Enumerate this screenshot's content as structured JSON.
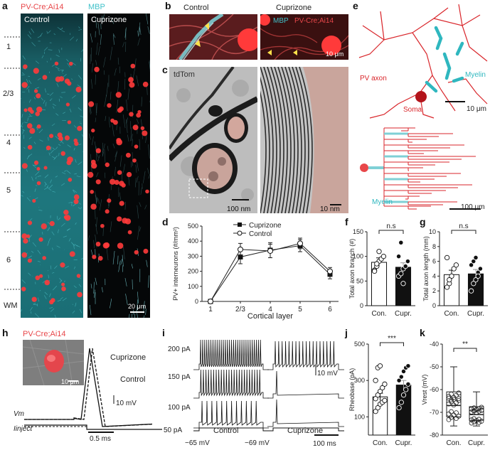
{
  "panels": {
    "a": {
      "letter": "a",
      "legend_red": "PV-Cre;Ai14",
      "legend_cyan": "MBP",
      "left_title": "Control",
      "right_title": "Cuprizone",
      "layers": [
        "1",
        "2/3",
        "4",
        "5",
        "6",
        "WM"
      ],
      "scale": "20 μm",
      "colors": {
        "red": "#e8474a",
        "cyan": "#3fc1c9",
        "bg": "#050708"
      }
    },
    "b": {
      "letter": "b",
      "left_title": "Control",
      "right_title": "Cuprizone",
      "mbp": "MBP",
      "pv": "PV-Cre;Ai14",
      "scale": "10 μm"
    },
    "c": {
      "letter": "c",
      "left_tag": "tdTom",
      "left_scale": "100 nm",
      "right_scale": "10 nm"
    },
    "d": {
      "letter": "d",
      "legend": [
        "Cuprizone",
        "Control"
      ],
      "ylabel": "PV+ interneurons (#/mm²)",
      "xlabel": "Cortical layer"
    },
    "e": {
      "letter": "e",
      "pv_axon": "PV axon",
      "myelin_top": "Myelin",
      "soma": "Soma",
      "scale_top": "10 μm",
      "myelin_bottom": "Myelin",
      "scale_bottom": "100 μm"
    },
    "f": {
      "letter": "f",
      "ylabel": "Total axon branch (#)",
      "sig": "n.s",
      "xticks": [
        "Con.",
        "Cupr."
      ]
    },
    "g": {
      "letter": "g",
      "ylabel": "Total axon length (mm)",
      "sig": "n.s",
      "xticks": [
        "Con.",
        "Cupr."
      ]
    },
    "h": {
      "letter": "h",
      "title": "PV-Cre;Ai14",
      "img_scale": "10 μm",
      "cuprizone": "Cuprizone",
      "control": "Control",
      "vm": "Vm",
      "inject": "Iinject",
      "volt_scale": "10 mV",
      "time_scale": "0.5 ms"
    },
    "i": {
      "letter": "i",
      "currents": [
        "200 pA",
        "150 pA",
        "100 pA",
        "50 pA"
      ],
      "control": "Control",
      "cuprizone": "Cuprizone",
      "vrest_control": "−65 mV",
      "vrest_cuprizone": "−69 mV",
      "volt_scale": "10 mV",
      "time_scale": "100 ms"
    },
    "j": {
      "letter": "j",
      "ylabel": "Rheobase (pA)",
      "sig": "***",
      "xticks": [
        "Con.",
        "Cupr."
      ]
    },
    "k": {
      "letter": "k",
      "ylabel": "Vrest (mV)",
      "sig": "**",
      "xticks": [
        "Con.",
        "Cupr."
      ]
    }
  },
  "chart_data": [
    {
      "panel": "d",
      "type": "line",
      "x": [
        "1",
        "2/3",
        "4",
        "5",
        "6"
      ],
      "series": [
        {
          "name": "Cuprizone",
          "values": [
            0,
            295,
            340,
            370,
            180
          ],
          "errors": [
            0,
            45,
            50,
            40,
            30
          ]
        },
        {
          "name": "Control",
          "values": [
            0,
            345,
            335,
            385,
            200
          ],
          "errors": [
            0,
            40,
            45,
            35,
            25
          ]
        }
      ],
      "xlabel": "Cortical layer",
      "ylabel": "PV+ interneurons (#/mm²)",
      "ylim": [
        0,
        500
      ],
      "yticks": [
        0,
        100,
        200,
        300,
        400,
        500
      ]
    },
    {
      "panel": "f",
      "type": "bar",
      "categories": [
        "Con.",
        "Cupr."
      ],
      "values": [
        88,
        78
      ],
      "errors": [
        9,
        9
      ],
      "points": [
        [
          72,
          80,
          90,
          95,
          100,
          70,
          85,
          110
        ],
        [
          60,
          65,
          75,
          80,
          90,
          100,
          128,
          45
        ]
      ],
      "ylabel": "Total axon branch (#)",
      "ylim": [
        0,
        150
      ],
      "yticks": [
        0,
        50,
        100,
        150
      ],
      "significance": "n.s"
    },
    {
      "panel": "g",
      "type": "bar",
      "categories": [
        "Con.",
        "Cupr."
      ],
      "values": [
        4.2,
        4.3
      ],
      "errors": [
        0.6,
        0.6
      ],
      "points": [
        [
          2.5,
          3.0,
          4.0,
          5.0,
          5.5,
          6.5,
          3.5
        ],
        [
          2.0,
          3.0,
          3.5,
          4.5,
          5.0,
          5.5,
          6.0,
          6.5,
          4.0
        ]
      ],
      "ylabel": "Total axon length (mm)",
      "ylim": [
        0,
        10
      ],
      "yticks": [
        0,
        2,
        4,
        6,
        8,
        10
      ],
      "significance": "n.s"
    },
    {
      "panel": "j",
      "type": "bar",
      "categories": [
        "Con.",
        "Cupr."
      ],
      "values": [
        210,
        275
      ],
      "errors": [
        20,
        25
      ],
      "points": [
        [
          130,
          150,
          170,
          180,
          190,
          200,
          220,
          240,
          260,
          280,
          300,
          370,
          380
        ],
        [
          150,
          180,
          220,
          250,
          280,
          300,
          320,
          350,
          370,
          380
        ]
      ],
      "ylabel": "Rheobase (pA)",
      "ylim": [
        0,
        500
      ],
      "yticks": [
        100,
        300,
        500
      ],
      "significance": "***"
    },
    {
      "panel": "k",
      "type": "box",
      "categories": [
        "Con.",
        "Cupr."
      ],
      "box": [
        {
          "q1": -72,
          "median": -67,
          "q3": -61,
          "min": -76,
          "max": -50
        },
        {
          "q1": -73.5,
          "median": -71,
          "q3": -67.5,
          "min": -76,
          "max": -61
        }
      ],
      "ylabel": "Vrest (mV)",
      "ylim": [
        -80,
        -40
      ],
      "yticks": [
        -80,
        -70,
        -60,
        -50,
        -40
      ],
      "significance": "**"
    }
  ]
}
